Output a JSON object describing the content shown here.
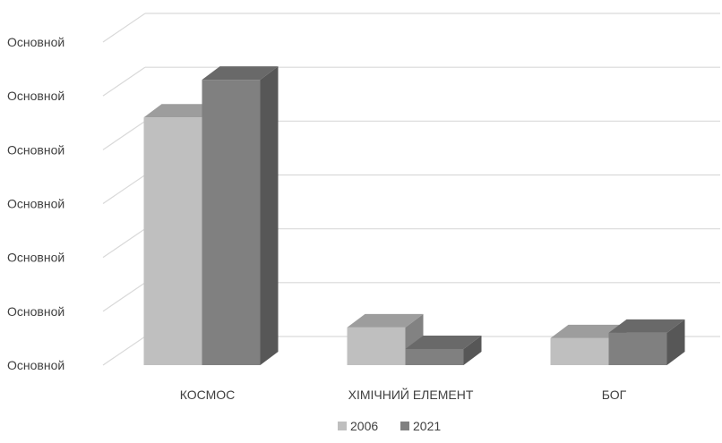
{
  "chart_data": {
    "type": "bar",
    "style": "3d-clustered-column",
    "categories": [
      "КОСМОС",
      "ХІМІЧНИЙ ЕЛЕМЕНТ",
      "БОГ"
    ],
    "series": [
      {
        "name": "2006",
        "values": [
          4.6,
          0.7,
          0.5
        ],
        "color": "#bfbfbf"
      },
      {
        "name": "2021",
        "values": [
          5.3,
          0.3,
          0.6
        ],
        "color": "#808080"
      }
    ],
    "ylim": [
      0,
      6
    ],
    "ytick_labels": [
      "Основной",
      "Основной",
      "Основной",
      "Основной",
      "Основной",
      "Основной",
      "Основной"
    ],
    "grid": true,
    "legend_position": "bottom"
  }
}
